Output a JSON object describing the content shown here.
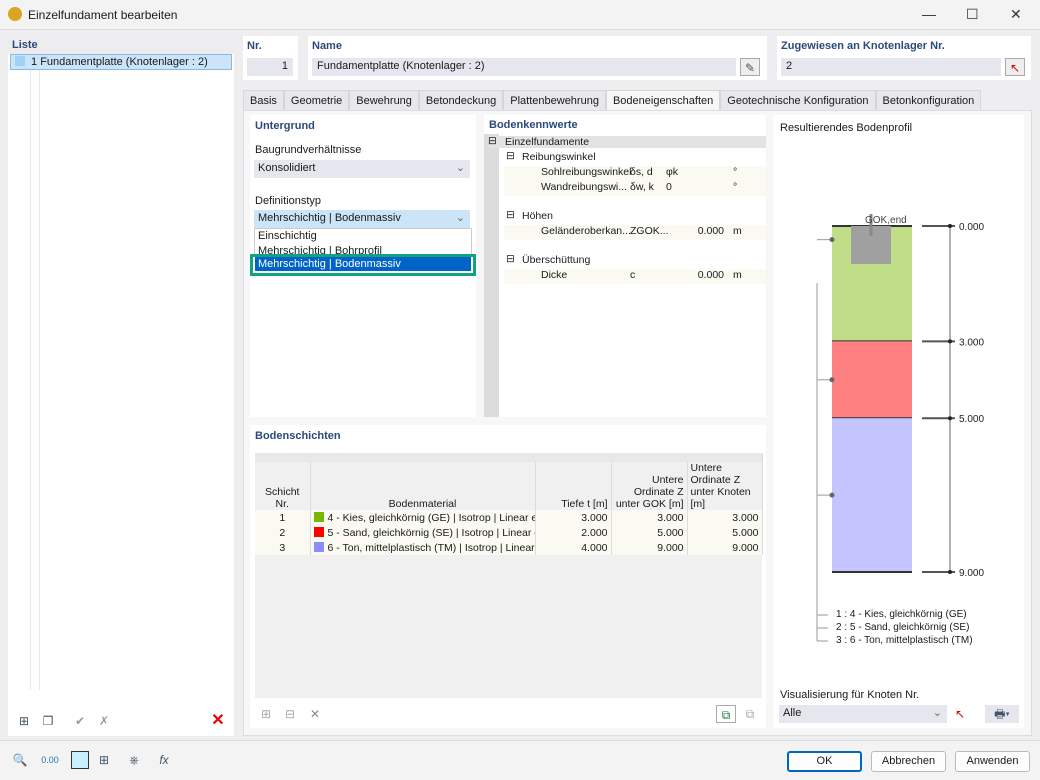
{
  "window": {
    "title": "Einzelfundament bearbeiten",
    "minimize": "—",
    "maximize": "☐",
    "close": "✕"
  },
  "list": {
    "header": "Liste",
    "items": [
      {
        "nr": "1",
        "label": "Fundamentplatte (Knotenlager : 2)"
      }
    ]
  },
  "nr": {
    "label": "Nr.",
    "value": "1"
  },
  "name": {
    "label": "Name",
    "value": "Fundamentplatte (Knotenlager : 2)"
  },
  "assigned": {
    "label": "Zugewiesen an Knotenlager Nr.",
    "value": "2"
  },
  "tabs": [
    "Basis",
    "Geometrie",
    "Bewehrung",
    "Betondeckung",
    "Plattenbewehrung",
    "Bodeneigenschaften",
    "Geotechnische Konfiguration",
    "Betonkonfiguration"
  ],
  "active_tab": "Bodeneigenschaften",
  "untergrund": {
    "header": "Untergrund",
    "baugrund_label": "Baugrundverhältnisse",
    "baugrund_value": "Konsolidiert",
    "def_label": "Definitionstyp",
    "def_value": "Mehrschichtig | Bodenmassiv",
    "options": [
      "Einschichtig",
      "Mehrschichtig | Bohrprofil",
      "Mehrschichtig | Bodenmassiv"
    ]
  },
  "kennwerte": {
    "header": "Bodenkennwerte",
    "root": "Einzelfundamente",
    "groups": [
      {
        "label": "Reibungswinkel",
        "rows": [
          {
            "name": "Sohlreibungswinkel",
            "sym": "δs, d",
            "value": "φk",
            "unit": "°"
          },
          {
            "name": "Wandreibungswi...",
            "sym": "δw, k",
            "value": "0",
            "unit": "°"
          }
        ]
      },
      {
        "label": "Höhen",
        "rows": [
          {
            "name": "Geländeroberkan...",
            "sym": "ZGOK...",
            "value": "0.000",
            "unit": "m"
          }
        ]
      },
      {
        "label": "Überschüttung",
        "rows": [
          {
            "name": "Dicke",
            "sym": "c",
            "value": "0.000",
            "unit": "m"
          }
        ]
      }
    ]
  },
  "schichten": {
    "header": "Bodenschichten",
    "columns": [
      "Schicht Nr.",
      "Bodenmaterial",
      "Tiefe t [m]",
      "Untere Ordinate Z unter GOK [m]",
      "Untere Ordinate Z unter Knoten [m]"
    ],
    "rows": [
      {
        "nr": "1",
        "material": "4 - Kies, gleichkörnig (GE) | Isotrop | Linear el...",
        "color": "#76b900",
        "t": "3.000",
        "zgok": "3.000",
        "zkn": "3.000"
      },
      {
        "nr": "2",
        "material": "5 - Sand, gleichkörnig (SE) | Isotrop | Linear e...",
        "color": "#ff0000",
        "t": "2.000",
        "zgok": "5.000",
        "zkn": "5.000"
      },
      {
        "nr": "3",
        "material": "6 - Ton, mittelplastisch (TM) | Isotrop | Linear ...",
        "color": "#8c8cff",
        "t": "4.000",
        "zgok": "9.000",
        "zkn": "9.000"
      }
    ]
  },
  "profil": {
    "header": "Resultierendes Bodenprofil",
    "gok_label": "GOK,end",
    "layers": [
      {
        "top": 0,
        "bottom": 3,
        "color": "#c0de88"
      },
      {
        "top": 3,
        "bottom": 5,
        "color": "#ff8080"
      },
      {
        "top": 5,
        "bottom": 9,
        "color": "#c4c4ff"
      }
    ],
    "tick_labels": [
      "0.000",
      "3.000",
      "5.000",
      "9.000"
    ],
    "legend": [
      "1 :  4 - Kies, gleichkörnig (GE)",
      "2 :  5 - Sand, gleichkörnig (SE)",
      "3 :  6 - Ton, mittelplastisch (TM)"
    ],
    "vis_label": "Visualisierung für Knoten Nr.",
    "vis_value": "Alle"
  },
  "buttons": {
    "ok": "OK",
    "cancel": "Abbrechen",
    "apply": "Anwenden"
  }
}
